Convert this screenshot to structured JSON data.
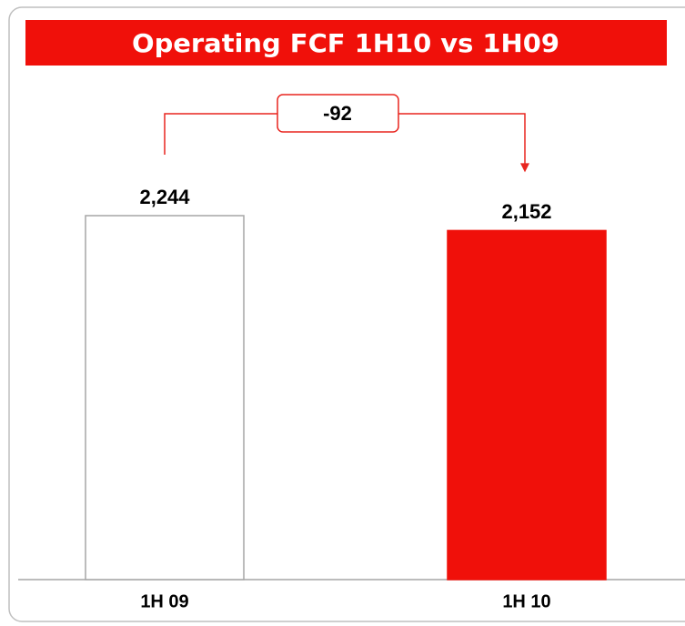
{
  "chart_data": {
    "type": "bar",
    "title": "Operating FCF 1H10 vs 1H09",
    "categories": [
      "1H 09",
      "1H 10"
    ],
    "values": [
      2244,
      2152
    ],
    "value_labels": [
      "2,244",
      "2,152"
    ],
    "colors": [
      "#ffffff",
      "#f0100a"
    ],
    "edgecolors": [
      "#a6a6a6",
      "#f0100a"
    ],
    "annotation": "-92",
    "accent": "#e8251f"
  }
}
